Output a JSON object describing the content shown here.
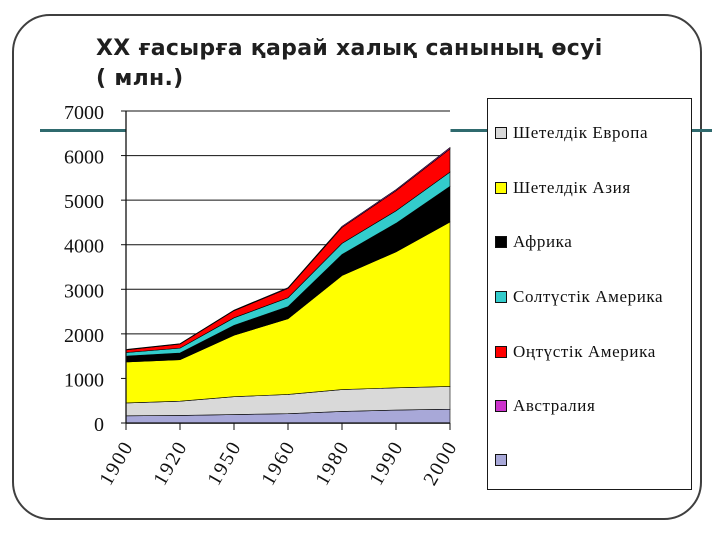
{
  "page": {
    "title_line_1": "XX ғасырға қарай халық санының өсуі",
    "title_line_2": "( млн.)"
  },
  "chart_data": {
    "type": "area",
    "title": "XX ғасырға қарай халық санының өсуі ( млн.)",
    "categories": [
      "1900",
      "1920",
      "1950",
      "1960",
      "1980",
      "1990",
      "2000"
    ],
    "ylim": [
      0,
      7000
    ],
    "yticks": [
      0,
      1000,
      2000,
      3000,
      4000,
      5000,
      6000,
      7000
    ],
    "grid": true,
    "legend_position": "right",
    "series": [
      {
        "name": "",
        "color": "#a8a8d8",
        "values": [
          160,
          170,
          190,
          210,
          260,
          290,
          310
        ]
      },
      {
        "name": "Шетелдік Европа",
        "color": "#d9d9d9",
        "values": [
          290,
          320,
          400,
          430,
          490,
          500,
          510
        ]
      },
      {
        "name": "Шетелдік Азия",
        "color": "#ffff00",
        "values": [
          920,
          930,
          1380,
          1700,
          2560,
          3050,
          3690
        ]
      },
      {
        "name": "Африка",
        "color": "#000000",
        "values": [
          130,
          150,
          220,
          270,
          470,
          640,
          800
        ]
      },
      {
        "name": "Солтүстік Америка",
        "color": "#33cccc",
        "values": [
          80,
          110,
          170,
          200,
          250,
          280,
          320
        ]
      },
      {
        "name": "Оңтүстік Америка",
        "color": "#ff0000",
        "values": [
          60,
          90,
          160,
          210,
          360,
          450,
          520
        ]
      },
      {
        "name": "Австралия",
        "color": "#cc33cc",
        "values": [
          10,
          10,
          13,
          16,
          23,
          27,
          30
        ]
      }
    ]
  }
}
